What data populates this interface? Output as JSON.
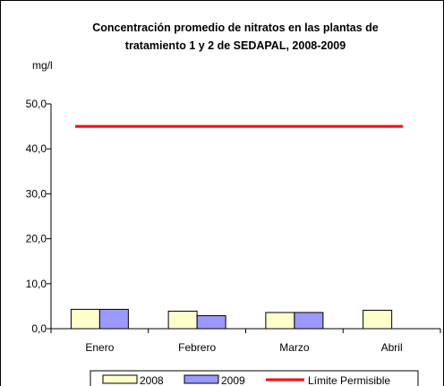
{
  "chart_data": {
    "type": "bar",
    "title_lines": [
      "Concentración promedio de nitratos en las plantas de",
      "tratamiento 1 y 2 de SEDAPAL, 2008-2009"
    ],
    "ylabel": "mg/l",
    "xlabel": "",
    "ylim": [
      0,
      50
    ],
    "y_ticks": [
      0,
      10,
      20,
      30,
      40,
      50
    ],
    "y_tick_labels": [
      "0,0",
      "10,0",
      "20,0",
      "30,0",
      "40,0",
      "50,0"
    ],
    "categories": [
      "Enero",
      "Febrero",
      "Marzo",
      "Abril"
    ],
    "series": [
      {
        "name": "2008",
        "color": "#ffffcc",
        "values": [
          4.3,
          3.9,
          3.6,
          4.1
        ]
      },
      {
        "name": "2009",
        "color": "#9999ff",
        "values": [
          4.3,
          2.9,
          3.6,
          null
        ]
      }
    ],
    "reference_line": {
      "name": "Límite Permisible",
      "value": 45,
      "color": "#ff0000"
    },
    "grid": false,
    "legend_position": "bottom"
  }
}
